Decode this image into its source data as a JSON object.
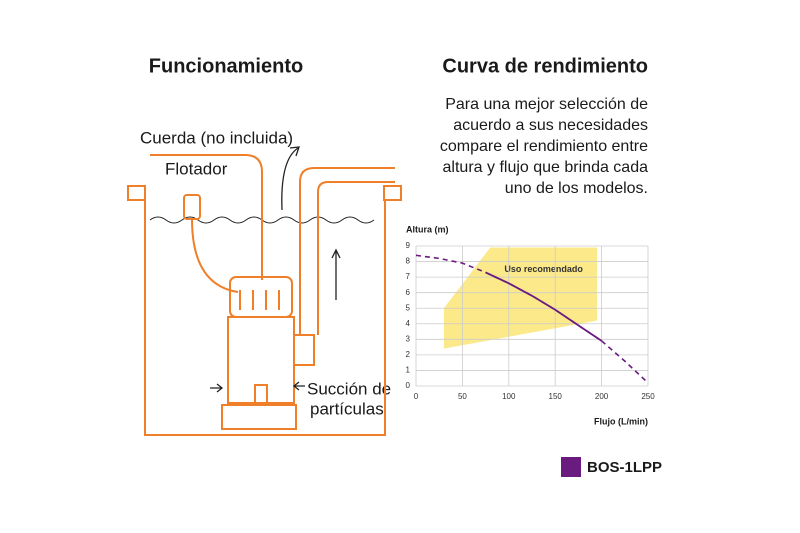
{
  "diagram": {
    "title": "Funcionamiento",
    "labels": [
      "Cuerda (no incluida)",
      "Flotador",
      "Succión de",
      "partículas"
    ]
  },
  "chart_data": {
    "type": "line",
    "title": "Curva de rendimiento",
    "subtitle": [
      "Para una mejor selección de",
      "acuerdo a sus necesidades",
      "compare el rendimiento entre",
      "altura y flujo que brinda cada",
      "uno de los modelos."
    ],
    "ylabel": "Altura (m)",
    "xlabel": "Flujo (L/min)",
    "x": [
      0,
      25,
      50,
      75,
      100,
      125,
      150,
      175,
      200,
      225,
      250
    ],
    "series": [
      {
        "name": "BOS-1LPP",
        "color": "#6a1b7f",
        "values": [
          8.4,
          8.2,
          7.9,
          7.3,
          6.6,
          5.8,
          4.9,
          3.9,
          2.9,
          1.6,
          0.2
        ]
      }
    ],
    "solid_xrange": [
      75,
      200
    ],
    "region": {
      "label": "Uso recomendado",
      "color": "#fbe98a",
      "x": [
        30,
        80,
        195,
        195,
        30
      ],
      "y": [
        5,
        8.9,
        8.9,
        4.2,
        2.4
      ]
    },
    "xlim": [
      0,
      250
    ],
    "ylim": [
      0,
      9
    ],
    "xticks": [
      0,
      50,
      100,
      150,
      200,
      250
    ],
    "yticks": [
      0,
      1,
      2,
      3,
      4,
      5,
      6,
      7,
      8,
      9
    ],
    "grid": true
  }
}
